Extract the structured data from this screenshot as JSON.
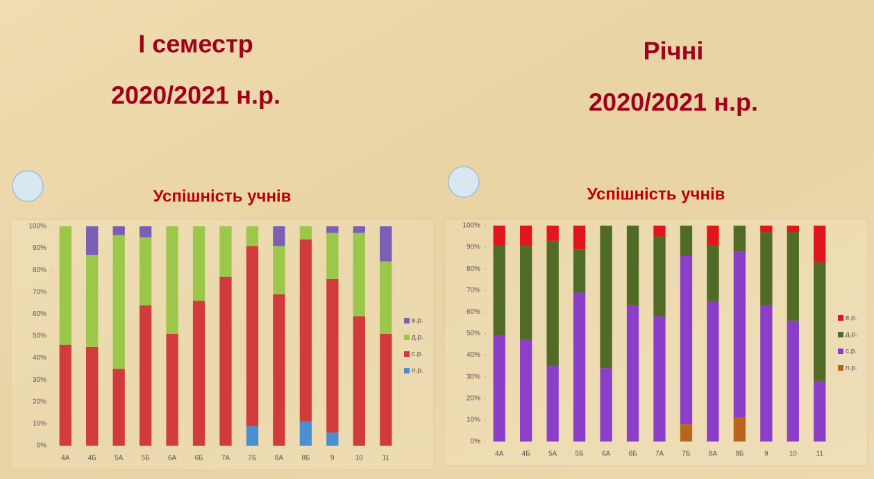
{
  "headings": [
    {
      "lines": [
        "І семестр",
        "2020/2021 н.р."
      ]
    },
    {
      "lines": [
        "Річні",
        "2020/2021 н.р."
      ]
    }
  ],
  "chart_data": [
    {
      "type": "bar",
      "stacked": true,
      "title": "Успішність учнів",
      "categories": [
        "4А",
        "4Б",
        "5А",
        "5Б",
        "6А",
        "6Б",
        "7А",
        "7Б",
        "8А",
        "8Б",
        "9",
        "10",
        "11"
      ],
      "series": [
        {
          "name": "п.р.",
          "color": "#4a8fd0",
          "values": [
            0,
            0,
            0,
            0,
            0,
            0,
            0,
            9,
            0,
            11,
            6,
            0,
            0
          ]
        },
        {
          "name": "с.р.",
          "color": "#d13b3b",
          "values": [
            46,
            45,
            35,
            64,
            51,
            66,
            77,
            82,
            69,
            83,
            70,
            59,
            51
          ]
        },
        {
          "name": "д.р.",
          "color": "#9bc84a",
          "values": [
            54,
            42,
            61,
            31,
            49,
            34,
            23,
            9,
            22,
            6,
            21,
            38,
            33
          ]
        },
        {
          "name": "в.р.",
          "color": "#7a5fb5",
          "values": [
            0,
            13,
            4,
            5,
            0,
            0,
            0,
            0,
            9,
            0,
            3,
            3,
            16
          ]
        }
      ],
      "ylim": [
        0,
        100
      ],
      "yticks": [
        {
          "value": 0,
          "label": "0%"
        },
        {
          "value": 10,
          "label": "10%"
        },
        {
          "value": 20,
          "label": "20%"
        },
        {
          "value": 30,
          "label": "30%"
        },
        {
          "value": 40,
          "label": "40%"
        },
        {
          "value": 50,
          "label": "50%"
        },
        {
          "value": 60,
          "label": "60%"
        },
        {
          "value": 70,
          "label": "70%"
        },
        {
          "value": 80,
          "label": "80%"
        },
        {
          "value": 90,
          "label": "90%"
        },
        {
          "value": 100,
          "label": "100%"
        }
      ],
      "legend": "right"
    },
    {
      "type": "bar",
      "stacked": true,
      "title": "Успішність учнів",
      "categories": [
        "4А",
        "4Б",
        "5А",
        "5Б",
        "6А",
        "6Б",
        "7А",
        "7Б",
        "8А",
        "8Б",
        "9",
        "10",
        "11"
      ],
      "series": [
        {
          "name": "п.р.",
          "color": "#b8651e",
          "values": [
            0,
            0,
            0,
            0,
            0,
            0,
            0,
            8,
            0,
            11,
            0,
            0,
            0
          ]
        },
        {
          "name": "с.р.",
          "color": "#8b3fc9",
          "values": [
            49,
            47,
            35,
            69,
            34,
            63,
            58,
            78,
            65,
            77,
            63,
            56,
            28
          ]
        },
        {
          "name": "д.р.",
          "color": "#4f6b25",
          "values": [
            42,
            44,
            58,
            20,
            66,
            37,
            37,
            14,
            26,
            12,
            34,
            41,
            55
          ]
        },
        {
          "name": "в.р.",
          "color": "#e0161b",
          "values": [
            9,
            9,
            7,
            11,
            0,
            0,
            5,
            0,
            9,
            0,
            3,
            3,
            17
          ]
        }
      ],
      "ylim": [
        0,
        100
      ],
      "yticks": [
        {
          "value": 0,
          "label": "0%"
        },
        {
          "value": 10,
          "label": "10%"
        },
        {
          "value": 20,
          "label": "20%"
        },
        {
          "value": 30,
          "label": "30%"
        },
        {
          "value": 40,
          "label": "40%"
        },
        {
          "value": 50,
          "label": "50%"
        },
        {
          "value": 60,
          "label": "60%"
        },
        {
          "value": 70,
          "label": "70%"
        },
        {
          "value": 80,
          "label": "80%"
        },
        {
          "value": 90,
          "label": "90%"
        },
        {
          "value": 100,
          "label": "100%"
        }
      ],
      "legend": "right"
    }
  ]
}
